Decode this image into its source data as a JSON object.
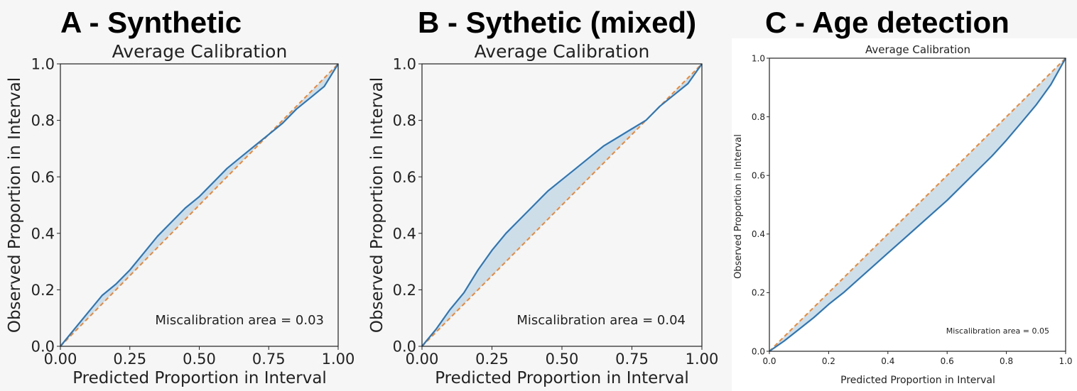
{
  "panels": [
    {
      "letter": "A - Synthetic",
      "annotation": "Miscalibration area = 0.03"
    },
    {
      "letter": "B - Sythetic (mixed)",
      "annotation": "Miscalibration area = 0.04"
    },
    {
      "letter": "C - Age detection",
      "annotation": "Miscalibration area = 0.05"
    }
  ],
  "colors": {
    "model_line": "#2f77b4",
    "ideal_line": "#ee8632",
    "fill": "#c9dbe8",
    "panel_c_background": "#ffffff"
  },
  "chart_data": [
    {
      "type": "line",
      "title": "Average Calibration",
      "xlabel": "Predicted Proportion in Interval",
      "ylabel": "Observed Proportion in Interval",
      "xlim": [
        0,
        1
      ],
      "ylim": [
        0,
        1
      ],
      "x_ticks": [
        "0.00",
        "0.25",
        "0.50",
        "0.75",
        "1.00"
      ],
      "y_ticks": [
        "0.0",
        "0.2",
        "0.4",
        "0.6",
        "0.8",
        "1.0"
      ],
      "grid": false,
      "series": [
        {
          "x": [
            0,
            0.05,
            0.1,
            0.15,
            0.2,
            0.25,
            0.3,
            0.35,
            0.4,
            0.45,
            0.5,
            0.55,
            0.6,
            0.65,
            0.7,
            0.75,
            0.8,
            0.85,
            0.9,
            0.95,
            1.0
          ],
          "y": [
            0,
            0.06,
            0.12,
            0.18,
            0.22,
            0.27,
            0.33,
            0.39,
            0.44,
            0.49,
            0.53,
            0.58,
            0.63,
            0.67,
            0.71,
            0.75,
            0.79,
            0.84,
            0.88,
            0.92,
            1.0
          ]
        },
        {
          "x": [
            0,
            1
          ],
          "y": [
            0,
            1
          ]
        }
      ],
      "fill_between": true
    },
    {
      "type": "line",
      "title": "Average Calibration",
      "xlabel": "Predicted Proportion in Interval",
      "ylabel": "Observed Proportion in Interval",
      "xlim": [
        0,
        1
      ],
      "ylim": [
        0,
        1
      ],
      "x_ticks": [
        "0.00",
        "0.25",
        "0.50",
        "0.75",
        "1.00"
      ],
      "y_ticks": [
        "0.0",
        "0.2",
        "0.4",
        "0.6",
        "0.8",
        "1.0"
      ],
      "grid": false,
      "series": [
        {
          "x": [
            0,
            0.05,
            0.1,
            0.15,
            0.2,
            0.25,
            0.3,
            0.35,
            0.4,
            0.45,
            0.5,
            0.55,
            0.6,
            0.65,
            0.7,
            0.75,
            0.8,
            0.85,
            0.9,
            0.95,
            1.0
          ],
          "y": [
            0,
            0.06,
            0.13,
            0.19,
            0.27,
            0.34,
            0.4,
            0.45,
            0.5,
            0.55,
            0.59,
            0.63,
            0.67,
            0.71,
            0.74,
            0.77,
            0.8,
            0.85,
            0.89,
            0.93,
            1.0
          ]
        },
        {
          "x": [
            0,
            1
          ],
          "y": [
            0,
            1
          ]
        }
      ],
      "fill_between": true
    },
    {
      "type": "line",
      "title": "Average Calibration",
      "xlabel": "Predicted Proportion in Interval",
      "ylabel": "Observed Proportion in Interval",
      "xlim": [
        0,
        1
      ],
      "ylim": [
        0,
        1
      ],
      "x_ticks": [
        "0.0",
        "0.2",
        "0.4",
        "0.6",
        "0.8",
        "1.0"
      ],
      "y_ticks": [
        "0.0",
        "0.2",
        "0.4",
        "0.6",
        "0.8",
        "1.0"
      ],
      "grid": false,
      "series": [
        {
          "x": [
            0,
            0.05,
            0.1,
            0.15,
            0.2,
            0.25,
            0.3,
            0.35,
            0.4,
            0.45,
            0.5,
            0.55,
            0.6,
            0.65,
            0.7,
            0.75,
            0.8,
            0.85,
            0.9,
            0.95,
            1.0
          ],
          "y": [
            0,
            0.035,
            0.075,
            0.115,
            0.16,
            0.2,
            0.245,
            0.29,
            0.335,
            0.38,
            0.425,
            0.47,
            0.515,
            0.565,
            0.615,
            0.665,
            0.72,
            0.78,
            0.84,
            0.91,
            1.0
          ]
        },
        {
          "x": [
            0,
            1
          ],
          "y": [
            0,
            1
          ]
        }
      ],
      "fill_between": true
    }
  ]
}
